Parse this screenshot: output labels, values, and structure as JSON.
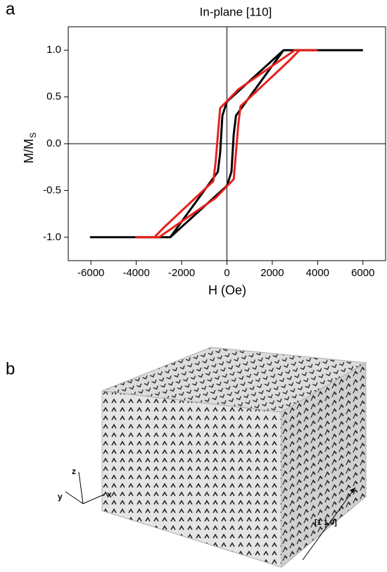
{
  "chart_data": {
    "type": "line",
    "panel_label": "a",
    "title": "In-plane [110]",
    "xlabel": "H (Oe)",
    "ylabel": "M/M",
    "ylabel_subscript": "S",
    "xlim": [
      -7000,
      7000
    ],
    "ylim": [
      -1.25,
      1.25
    ],
    "xticks": [
      -6000,
      -4000,
      -2000,
      0,
      2000,
      4000,
      6000
    ],
    "yticks": [
      {
        "value": -1,
        "label": "-1.0"
      },
      -0.5,
      {
        "value": 0,
        "label": "0.0"
      },
      0.5,
      {
        "value": 1,
        "label": "1.0"
      }
    ],
    "series": [
      {
        "color": "#000000",
        "x": [
          6000,
          2500,
          0,
          -200,
          -300,
          -400,
          -700,
          -2500,
          -6000,
          -2500,
          0,
          200,
          300,
          400,
          700,
          2500,
          6000
        ],
        "values": [
          1,
          1,
          0.45,
          0.3,
          -0.1,
          -0.3,
          -0.4,
          -1,
          -1,
          -1,
          -0.45,
          -0.3,
          0.1,
          0.3,
          0.4,
          1,
          1
        ]
      },
      {
        "color": "#e8201c",
        "x": [
          4000,
          3000,
          500,
          -300,
          -500,
          -600,
          -2800,
          -3200,
          -4000,
          -3000,
          -500,
          300,
          500,
          600,
          2800,
          3200,
          4000
        ],
        "values": [
          1,
          1,
          0.58,
          0.38,
          -0.2,
          -0.4,
          -0.9,
          -1,
          -1,
          -1,
          -0.58,
          -0.38,
          0.2,
          0.4,
          0.9,
          1,
          1
        ]
      }
    ]
  },
  "panel_b": {
    "panel_label": "b",
    "axis_z": "z",
    "axis_y": "y",
    "axis_x": "x",
    "direction": "[1 1 0]"
  }
}
